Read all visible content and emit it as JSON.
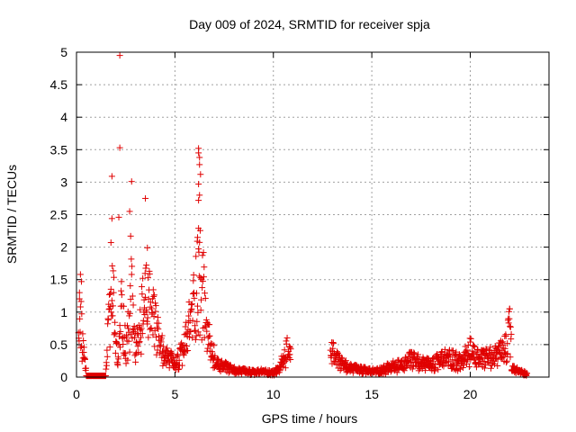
{
  "chart_data": {
    "type": "scatter",
    "title": "Day 009 of 2024, SRMTID for receiver spja",
    "xlabel": "GPS time / hours",
    "ylabel": "SRMTID / TECUs",
    "xlim": [
      0,
      24
    ],
    "ylim": [
      0,
      5
    ],
    "x_ticks": [
      0,
      5,
      10,
      15,
      20
    ],
    "x_tick_labels": [
      "0",
      "5",
      "10",
      "15",
      "20"
    ],
    "y_ticks": [
      0,
      0.5,
      1,
      1.5,
      2,
      2.5,
      3,
      3.5,
      4,
      4.5,
      5
    ],
    "y_tick_labels": [
      "0",
      "0.5",
      "1",
      "1.5",
      "2",
      "2.5",
      "3",
      "3.5",
      "4",
      "4.5",
      "5"
    ],
    "grid": true,
    "marker": "+",
    "marker_color": "#e00000",
    "notable_points": [
      {
        "x": 2.2,
        "y": 4.95
      },
      {
        "x": 2.2,
        "y": 3.53
      },
      {
        "x": 1.8,
        "y": 3.09
      },
      {
        "x": 2.8,
        "y": 3.01
      },
      {
        "x": 3.5,
        "y": 2.75
      },
      {
        "x": 2.7,
        "y": 2.55
      },
      {
        "x": 1.8,
        "y": 2.44
      },
      {
        "x": 2.15,
        "y": 2.46
      },
      {
        "x": 2.75,
        "y": 2.17
      },
      {
        "x": 1.75,
        "y": 2.07
      },
      {
        "x": 3.6,
        "y": 1.99
      },
      {
        "x": 6.2,
        "y": 3.52
      },
      {
        "x": 6.2,
        "y": 3.45
      },
      {
        "x": 6.25,
        "y": 3.38
      },
      {
        "x": 6.25,
        "y": 3.27
      },
      {
        "x": 6.3,
        "y": 3.12
      },
      {
        "x": 6.2,
        "y": 2.97
      },
      {
        "x": 6.25,
        "y": 2.8
      },
      {
        "x": 6.2,
        "y": 2.72
      },
      {
        "x": 6.2,
        "y": 2.29
      },
      {
        "x": 6.15,
        "y": 2.15
      },
      {
        "x": 22.0,
        "y": 1.05
      },
      {
        "x": 0.2,
        "y": 1.58
      },
      {
        "x": 0.25,
        "y": 1.47
      },
      {
        "x": 0.15,
        "y": 1.3
      }
    ],
    "series": [
      {
        "name": "SRMTID",
        "segments": [
          {
            "x": [
              0.1,
              0.15,
              0.2,
              0.25,
              0.3,
              0.35,
              0.4,
              0.45,
              0.5
            ],
            "y": [
              0.7,
              1.2,
              1.1,
              0.9,
              0.6,
              0.5,
              0.35,
              0.3,
              0.1
            ]
          },
          {
            "x": [
              0.5,
              0.7,
              0.9,
              1.1,
              1.3,
              1.5
            ],
            "y": [
              0.02,
              0.02,
              0.02,
              0.02,
              0.02,
              0.02
            ]
          },
          {
            "x": [
              1.5,
              1.6,
              1.7,
              1.8,
              1.9,
              2.0,
              2.1,
              2.2,
              2.3,
              2.4,
              2.5,
              2.6,
              2.7,
              2.8,
              2.9,
              3.0
            ],
            "y": [
              0.3,
              0.7,
              1.1,
              1.5,
              1.2,
              0.6,
              0.2,
              0.8,
              1.3,
              0.9,
              0.5,
              0.7,
              1.1,
              1.4,
              0.9,
              0.6
            ]
          },
          {
            "x": [
              3.0,
              3.2,
              3.4,
              3.6,
              3.8,
              4.0,
              4.2,
              4.4,
              4.6,
              4.8,
              5.0
            ],
            "y": [
              0.4,
              0.8,
              1.2,
              1.5,
              1.1,
              0.9,
              0.6,
              0.45,
              0.35,
              0.3,
              0.2
            ]
          },
          {
            "x": [
              5.0,
              5.2,
              5.4,
              5.6,
              5.8,
              6.0,
              6.2,
              6.4,
              6.6,
              6.8,
              7.0
            ],
            "y": [
              0.2,
              0.3,
              0.45,
              0.7,
              1.0,
              1.4,
              1.8,
              1.6,
              0.9,
              0.5,
              0.35
            ]
          },
          {
            "x": [
              7.0,
              7.5,
              8.0,
              8.5,
              9.0,
              9.5,
              10.0,
              10.3,
              10.5,
              10.7,
              10.9
            ],
            "y": [
              0.25,
              0.18,
              0.12,
              0.1,
              0.08,
              0.1,
              0.07,
              0.15,
              0.3,
              0.45,
              0.35
            ]
          },
          {
            "x": [
              12.9,
              13.0,
              13.2,
              13.5,
              14.0,
              14.5,
              15.0,
              15.5,
              16.0,
              16.5,
              17.0,
              17.5,
              18.0
            ],
            "y": [
              0.6,
              0.45,
              0.3,
              0.22,
              0.15,
              0.12,
              0.1,
              0.12,
              0.18,
              0.2,
              0.3,
              0.25,
              0.2
            ]
          },
          {
            "x": [
              18.0,
              18.5,
              19.0,
              19.5,
              20.0,
              20.5,
              21.0,
              21.5,
              21.8,
              22.0,
              22.1
            ],
            "y": [
              0.2,
              0.3,
              0.35,
              0.25,
              0.45,
              0.3,
              0.35,
              0.4,
              0.5,
              0.8,
              0.6
            ]
          },
          {
            "x": [
              22.1,
              22.3,
              22.5,
              22.7,
              22.9
            ],
            "y": [
              0.15,
              0.12,
              0.1,
              0.08,
              0.05
            ]
          }
        ]
      }
    ]
  }
}
